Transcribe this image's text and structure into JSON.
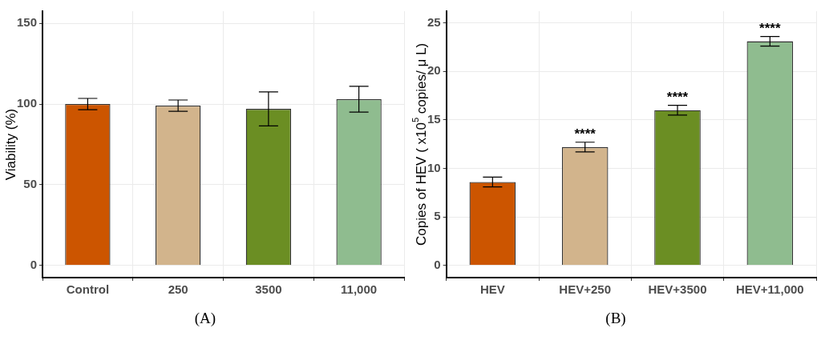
{
  "chart_data": [
    {
      "type": "bar",
      "ylabel": "Viability (%)",
      "categories": [
        "Control",
        "250",
        "3500",
        "11,000"
      ],
      "values": [
        100,
        99,
        97,
        103
      ],
      "colors": [
        "#cc5500",
        "#d2b48c",
        "#6b8e23",
        "#8fbc8f"
      ],
      "errors": [
        3.5,
        3.5,
        10.5,
        8
      ],
      "ylim": [
        -7.5,
        157.5
      ],
      "yticks": [
        0,
        50,
        100,
        150
      ],
      "grid": true,
      "legend": false,
      "annotations": [
        "(A)"
      ]
    },
    {
      "type": "bar",
      "ylabel": "Copies of HEV ( x10$^{5}$ copies/ μ L)",
      "categories": [
        "HEV",
        "HEV+250",
        "HEV+3500",
        "HEV+11,000"
      ],
      "values": [
        8.6,
        12.2,
        16.0,
        23.1
      ],
      "colors": [
        "#cc5500",
        "#d2b48c",
        "#6b8e23",
        "#8fbc8f"
      ],
      "errors": [
        0.5,
        0.5,
        0.5,
        0.5
      ],
      "ylim": [
        -1.25,
        26.2
      ],
      "yticks": [
        0,
        5,
        10,
        15,
        20,
        25
      ],
      "grid": true,
      "legend": false,
      "annotations": [
        {
          "text": "****",
          "x": "HEV+250",
          "y": 12.7
        },
        {
          "text": "****",
          "x": "HEV+3500",
          "y": 16.5
        },
        {
          "text": "****",
          "x": "HEV+11,000",
          "y": 23.6
        },
        "(B)"
      ]
    }
  ]
}
